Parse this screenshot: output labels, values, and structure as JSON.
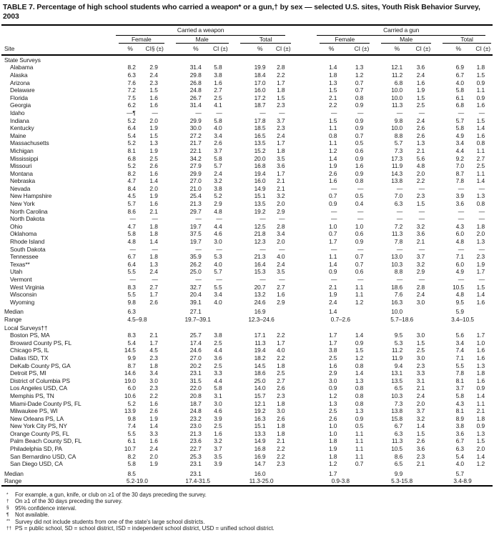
{
  "title": "TABLE 7. Percentage of high school students who carried a weapon* or a gun,† by sex — selected U.S. sites, Youth Risk Behavior Survey, 2003",
  "table": {
    "site_header": "Site",
    "groups": [
      {
        "label": "Carried a weapon"
      },
      {
        "label": "Carried a gun"
      }
    ],
    "subgroups": [
      "Female",
      "Male",
      "Total",
      "Female",
      "Male",
      "Total"
    ],
    "measure_headers": [
      "%",
      "CI§ (±)",
      "%",
      "CI (±)",
      "%",
      "CI (±)",
      "%",
      "CI (±)",
      "%",
      "CI (±)",
      "%",
      "CI (±)"
    ],
    "sections": [
      {
        "label": "State Surveys",
        "rows": [
          {
            "site": "Alabama",
            "values": [
              "8.2",
              "2.9",
              "31.4",
              "5.8",
              "19.9",
              "2.8",
              "1.4",
              "1.3",
              "12.1",
              "3.6",
              "6.9",
              "1.8"
            ]
          },
          {
            "site": "Alaska",
            "values": [
              "6.3",
              "2.4",
              "29.8",
              "3.8",
              "18.4",
              "2.2",
              "1.8",
              "1.2",
              "11.2",
              "2.4",
              "6.7",
              "1.5"
            ]
          },
          {
            "site": "Arizona",
            "values": [
              "7.6",
              "2.3",
              "26.8",
              "1.6",
              "17.0",
              "1.7",
              "1.3",
              "0.7",
              "6.8",
              "1.6",
              "4.0",
              "0.9"
            ]
          },
          {
            "site": "Delaware",
            "values": [
              "7.2",
              "1.5",
              "24.8",
              "2.7",
              "16.0",
              "1.8",
              "1.5",
              "0.7",
              "10.0",
              "1.9",
              "5.8",
              "1.1"
            ]
          },
          {
            "site": "Florida",
            "values": [
              "7.5",
              "1.6",
              "26.7",
              "2.5",
              "17.2",
              "1.5",
              "2.1",
              "0.8",
              "10.0",
              "1.5",
              "6.1",
              "0.9"
            ]
          },
          {
            "site": "Georgia",
            "values": [
              "6.2",
              "1.6",
              "31.4",
              "4.1",
              "18.7",
              "2.3",
              "2.2",
              "0.9",
              "11.3",
              "2.5",
              "6.8",
              "1.6"
            ]
          },
          {
            "site": "Idaho",
            "values": [
              "—¶",
              "—",
              "—",
              "—",
              "—",
              "—",
              "—",
              "—",
              "—",
              "—",
              "—",
              "—"
            ]
          },
          {
            "site": "Indiana",
            "values": [
              "5.2",
              "2.0",
              "29.9",
              "5.8",
              "17.8",
              "3.7",
              "1.5",
              "0.9",
              "9.8",
              "2.4",
              "5.7",
              "1.5"
            ]
          },
          {
            "site": "Kentucky",
            "values": [
              "6.4",
              "1.9",
              "30.0",
              "4.0",
              "18.5",
              "2.3",
              "1.1",
              "0.9",
              "10.0",
              "2.6",
              "5.8",
              "1.4"
            ]
          },
          {
            "site": "Maine",
            "values": [
              "5.4",
              "1.5",
              "27.2",
              "3.4",
              "16.5",
              "2.4",
              "0.8",
              "0.7",
              "8.8",
              "2.6",
              "4.9",
              "1.6"
            ]
          },
          {
            "site": "Massachusetts",
            "values": [
              "5.2",
              "1.3",
              "21.7",
              "2.6",
              "13.5",
              "1.7",
              "1.1",
              "0.5",
              "5.7",
              "1.3",
              "3.4",
              "0.8"
            ]
          },
          {
            "site": "Michigan",
            "values": [
              "8.1",
              "1.9",
              "22.1",
              "3.7",
              "15.2",
              "1.8",
              "1.2",
              "0.6",
              "7.3",
              "2.1",
              "4.4",
              "1.1"
            ]
          },
          {
            "site": "Mississippi",
            "values": [
              "6.8",
              "2.5",
              "34.2",
              "5.8",
              "20.0",
              "3.5",
              "1.4",
              "0.9",
              "17.3",
              "5.6",
              "9.2",
              "2.7"
            ]
          },
          {
            "site": "Missouri",
            "values": [
              "5.2",
              "2.6",
              "27.9",
              "5.7",
              "16.8",
              "3.6",
              "1.9",
              "1.6",
              "11.9",
              "4.8",
              "7.0",
              "2.5"
            ]
          },
          {
            "site": "Montana",
            "values": [
              "8.2",
              "1.6",
              "29.9",
              "2.4",
              "19.4",
              "1.7",
              "2.6",
              "0.9",
              "14.3",
              "2.0",
              "8.7",
              "1.1"
            ]
          },
          {
            "site": "Nebraska",
            "values": [
              "4.7",
              "1.4",
              "27.0",
              "3.2",
              "16.0",
              "2.1",
              "1.6",
              "0.8",
              "13.8",
              "2.2",
              "7.8",
              "1.4"
            ]
          },
          {
            "site": "Nevada",
            "values": [
              "8.4",
              "2.0",
              "21.0",
              "3.8",
              "14.9",
              "2.1",
              "—",
              "—",
              "—",
              "—",
              "—",
              "—"
            ]
          },
          {
            "site": "New Hampshire",
            "values": [
              "4.5",
              "1.9",
              "25.4",
              "5.2",
              "15.1",
              "3.2",
              "0.7",
              "0.5",
              "7.0",
              "2.3",
              "3.9",
              "1.3"
            ]
          },
          {
            "site": "New York",
            "values": [
              "5.7",
              "1.6",
              "21.3",
              "2.9",
              "13.5",
              "2.0",
              "0.9",
              "0.4",
              "6.3",
              "1.5",
              "3.6",
              "0.8"
            ]
          },
          {
            "site": "North Carolina",
            "values": [
              "8.6",
              "2.1",
              "29.7",
              "4.8",
              "19.2",
              "2.9",
              "—",
              "—",
              "—",
              "—",
              "—",
              "—"
            ]
          },
          {
            "site": "North Dakota",
            "values": [
              "—",
              "—",
              "—",
              "—",
              "—",
              "—",
              "—",
              "—",
              "—",
              "—",
              "—",
              "—"
            ]
          },
          {
            "site": "Ohio",
            "values": [
              "4.7",
              "1.8",
              "19.7",
              "4.4",
              "12.5",
              "2.8",
              "1.0",
              "1.0",
              "7.2",
              "3.2",
              "4.3",
              "1.8"
            ]
          },
          {
            "site": "Oklahoma",
            "values": [
              "5.8",
              "1.8",
              "37.5",
              "4.6",
              "21.8",
              "3.4",
              "0.7",
              "0.6",
              "11.3",
              "3.6",
              "6.0",
              "2.0"
            ]
          },
          {
            "site": "Rhode Island",
            "values": [
              "4.8",
              "1.4",
              "19.7",
              "3.0",
              "12.3",
              "2.0",
              "1.7",
              "0.9",
              "7.8",
              "2.1",
              "4.8",
              "1.3"
            ]
          },
          {
            "site": "South Dakota",
            "values": [
              "—",
              "—",
              "—",
              "—",
              "—",
              "—",
              "—",
              "—",
              "—",
              "—",
              "—",
              "—"
            ]
          },
          {
            "site": "Tennessee",
            "values": [
              "6.7",
              "1.8",
              "35.9",
              "5.3",
              "21.3",
              "4.0",
              "1.1",
              "0.7",
              "13.0",
              "3.7",
              "7.1",
              "2.3"
            ]
          },
          {
            "site": "Texas**",
            "values": [
              "6.4",
              "1.3",
              "26.2",
              "4.0",
              "16.4",
              "2.4",
              "1.4",
              "0.7",
              "10.3",
              "3.2",
              "6.0",
              "1.9"
            ]
          },
          {
            "site": "Utah",
            "values": [
              "5.5",
              "2.4",
              "25.0",
              "5.7",
              "15.3",
              "3.5",
              "0.9",
              "0.6",
              "8.8",
              "2.9",
              "4.9",
              "1.7"
            ]
          },
          {
            "site": "Vermont",
            "values": [
              "—",
              "—",
              "—",
              "—",
              "—",
              "—",
              "—",
              "—",
              "—",
              "—",
              "—",
              "—"
            ]
          },
          {
            "site": "West Virginia",
            "values": [
              "8.3",
              "2.7",
              "32.7",
              "5.5",
              "20.7",
              "2.7",
              "2.1",
              "1.1",
              "18.6",
              "2.8",
              "10.5",
              "1.5"
            ]
          },
          {
            "site": "Wisconsin",
            "values": [
              "5.5",
              "1.7",
              "20.4",
              "3.4",
              "13.2",
              "1.6",
              "1.9",
              "1.1",
              "7.6",
              "2.4",
              "4.8",
              "1.4"
            ]
          },
          {
            "site": "Wyoming",
            "values": [
              "9.8",
              "2.6",
              "39.1",
              "4.0",
              "24.6",
              "2.9",
              "2.4",
              "1.2",
              "16.3",
              "3.0",
              "9.5",
              "1.6"
            ]
          }
        ],
        "summary": [
          {
            "label": "Median",
            "values": [
              "6.3",
              "27.1",
              "16.9",
              "1.4",
              "10.0",
              "5.9"
            ]
          },
          {
            "label": "Range",
            "values": [
              "4.5–9.8",
              "19.7–39.1",
              "12.3–24.6",
              "0.7–2.6",
              "5.7–18.6",
              "3.4–10.5"
            ]
          }
        ]
      },
      {
        "label": "Local Surveys††",
        "rows": [
          {
            "site": "Boston PS, MA",
            "values": [
              "8.3",
              "2.1",
              "25.7",
              "3.8",
              "17.1",
              "2.2",
              "1.7",
              "1.4",
              "9.5",
              "3.0",
              "5.6",
              "1.7"
            ]
          },
          {
            "site": "Broward County PS, FL",
            "values": [
              "5.4",
              "1.7",
              "17.4",
              "2.5",
              "11.3",
              "1.7",
              "1.7",
              "0.9",
              "5.3",
              "1.5",
              "3.4",
              "1.0"
            ]
          },
          {
            "site": "Chicago PS, IL",
            "values": [
              "14.5",
              "4.5",
              "24.6",
              "4.4",
              "19.4",
              "4.0",
              "3.8",
              "1.5",
              "11.2",
              "2.5",
              "7.4",
              "1.6"
            ]
          },
          {
            "site": "Dallas ISD, TX",
            "values": [
              "9.9",
              "2.3",
              "27.0",
              "3.6",
              "18.2",
              "2.2",
              "2.5",
              "1.2",
              "11.9",
              "3.0",
              "7.1",
              "1.6"
            ]
          },
          {
            "site": "DeKalb County PS, GA",
            "values": [
              "8.7",
              "1.8",
              "20.2",
              "2.5",
              "14.5",
              "1.8",
              "1.6",
              "0.8",
              "9.4",
              "2.3",
              "5.5",
              "1.3"
            ]
          },
          {
            "site": "Detroit PS, MI",
            "values": [
              "14.6",
              "3.4",
              "23.1",
              "3.3",
              "18.6",
              "2.5",
              "2.9",
              "1.4",
              "13.1",
              "3.3",
              "7.8",
              "1.8"
            ]
          },
          {
            "site": "District of Columbia PS",
            "values": [
              "19.0",
              "3.0",
              "31.5",
              "4.4",
              "25.0",
              "2.7",
              "3.0",
              "1.3",
              "13.5",
              "3.1",
              "8.1",
              "1.6"
            ]
          },
          {
            "site": "Los Angeles USD, CA",
            "values": [
              "6.0",
              "2.3",
              "22.0",
              "5.8",
              "14.0",
              "2.6",
              "0.9",
              "0.8",
              "6.5",
              "2.1",
              "3.7",
              "0.9"
            ]
          },
          {
            "site": "Memphis PS, TN",
            "values": [
              "10.6",
              "2.2",
              "20.8",
              "3.1",
              "15.7",
              "2.3",
              "1.2",
              "0.8",
              "10.3",
              "2.4",
              "5.8",
              "1.4"
            ]
          },
          {
            "site": "Miami-Dade County PS, FL",
            "values": [
              "5.2",
              "1.6",
              "18.7",
              "3.0",
              "12.1",
              "1.8",
              "1.3",
              "0.8",
              "7.3",
              "2.0",
              "4.3",
              "1.1"
            ]
          },
          {
            "site": "Milwaukee PS, WI",
            "values": [
              "13.9",
              "2.6",
              "24.8",
              "4.6",
              "19.2",
              "3.0",
              "2.5",
              "1.3",
              "13.8",
              "3.7",
              "8.1",
              "2.1"
            ]
          },
          {
            "site": "New Orleans PS, LA",
            "values": [
              "9.8",
              "1.9",
              "23.2",
              "3.9",
              "16.3",
              "2.6",
              "2.6",
              "0.9",
              "15.8",
              "3.2",
              "8.9",
              "1.8"
            ]
          },
          {
            "site": "New York City PS, NY",
            "values": [
              "7.4",
              "1.4",
              "23.0",
              "2.5",
              "15.1",
              "1.8",
              "1.0",
              "0.5",
              "6.7",
              "1.4",
              "3.8",
              "0.9"
            ]
          },
          {
            "site": "Orange County PS, FL",
            "values": [
              "5.5",
              "3.3",
              "21.3",
              "1.6",
              "13.3",
              "1.8",
              "1.0",
              "1.1",
              "6.3",
              "1.5",
              "3.6",
              "1.3"
            ]
          },
          {
            "site": "Palm Beach County SD, FL",
            "values": [
              "6.1",
              "1.6",
              "23.6",
              "3.2",
              "14.9",
              "2.1",
              "1.8",
              "1.1",
              "11.3",
              "2.6",
              "6.7",
              "1.5"
            ]
          },
          {
            "site": "Philadelphia SD, PA",
            "values": [
              "10.7",
              "2.4",
              "22.7",
              "3.7",
              "16.8",
              "2.2",
              "1.9",
              "1.1",
              "10.5",
              "3.6",
              "6.3",
              "2.0"
            ]
          },
          {
            "site": "San Bernardino USD, CA",
            "values": [
              "8.2",
              "2.0",
              "25.3",
              "3.5",
              "16.9",
              "2.2",
              "1.8",
              "1.1",
              "8.6",
              "2.3",
              "5.4",
              "1.4"
            ]
          },
          {
            "site": "San Diego USD, CA",
            "values": [
              "5.8",
              "1.9",
              "23.1",
              "3.9",
              "14.7",
              "2.3",
              "1.2",
              "0.7",
              "6.5",
              "2.1",
              "4.0",
              "1.2"
            ]
          }
        ],
        "summary": [
          {
            "label": "Median",
            "values": [
              "8.5",
              "23.1",
              "16.0",
              "1.7",
              "9.9",
              "5.7"
            ]
          },
          {
            "label": "Range",
            "values": [
              "5.2-19.0",
              "17.4-31.5",
              "11.3-25.0",
              "0.9-3.8",
              "5.3-15.8",
              "3.4-8.9"
            ]
          }
        ]
      }
    ]
  },
  "footnotes": [
    {
      "marker": "*",
      "text": "For example, a gun, knife, or club on ≥1 of the 30 days preceding the survey."
    },
    {
      "marker": "†",
      "text": "On ≥1 of the 30 days preceding the survey."
    },
    {
      "marker": "§",
      "text": "95% confidence interval."
    },
    {
      "marker": "¶",
      "text": "Not available."
    },
    {
      "marker": "**",
      "text": "Survey did not include students from one of the state's large school districts."
    },
    {
      "marker": "††",
      "text": "PS = public school, SD = school district, ISD = independent school district, USD = unified school district."
    }
  ]
}
